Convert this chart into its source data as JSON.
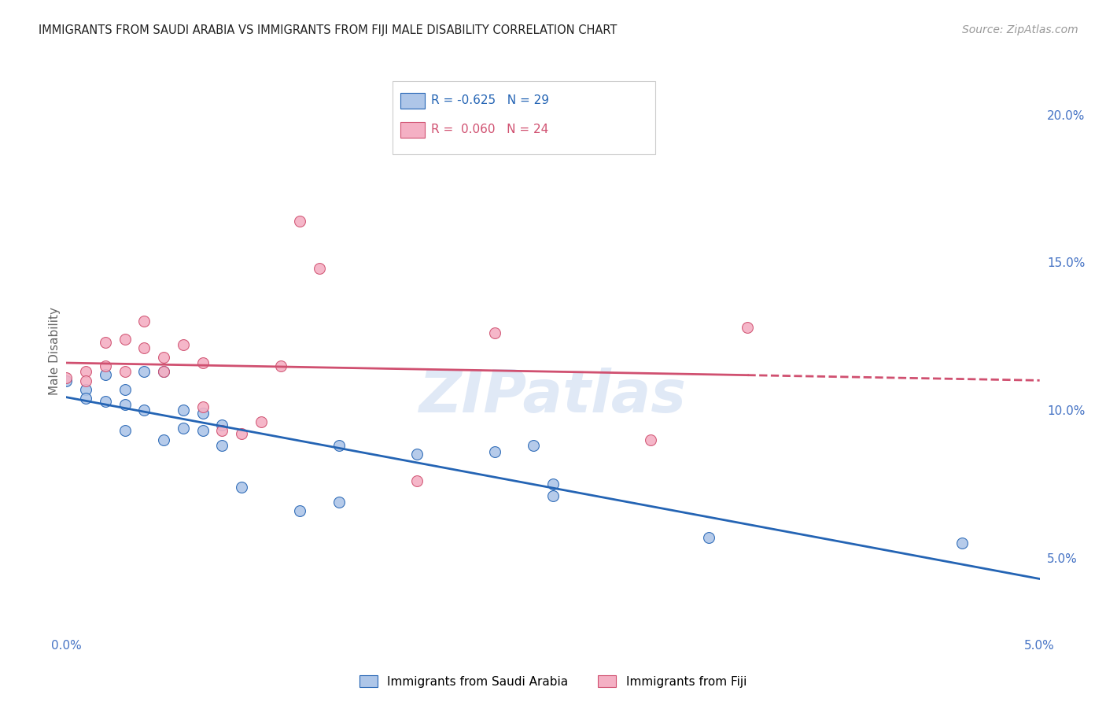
{
  "title": "IMMIGRANTS FROM SAUDI ARABIA VS IMMIGRANTS FROM FIJI MALE DISABILITY CORRELATION CHART",
  "source": "Source: ZipAtlas.com",
  "ylabel": "Male Disability",
  "ylabel_right_ticks": [
    "5.0%",
    "10.0%",
    "15.0%",
    "20.0%"
  ],
  "ylabel_right_vals": [
    0.05,
    0.1,
    0.15,
    0.2
  ],
  "xmin": 0.0,
  "xmax": 0.05,
  "ymin": 0.025,
  "ymax": 0.215,
  "watermark": "ZIPatlas",
  "saudi_R": -0.625,
  "saudi_N": 29,
  "fiji_R": 0.06,
  "fiji_N": 24,
  "saudi_color": "#aec6e8",
  "saudi_line_color": "#2464b4",
  "fiji_color": "#f4b0c4",
  "fiji_line_color": "#d05070",
  "saudi_x": [
    0.0,
    0.001,
    0.001,
    0.002,
    0.002,
    0.003,
    0.003,
    0.003,
    0.004,
    0.004,
    0.005,
    0.005,
    0.006,
    0.006,
    0.007,
    0.007,
    0.008,
    0.008,
    0.009,
    0.012,
    0.014,
    0.014,
    0.018,
    0.022,
    0.024,
    0.025,
    0.025,
    0.033,
    0.046
  ],
  "saudi_y": [
    0.11,
    0.107,
    0.104,
    0.112,
    0.103,
    0.102,
    0.107,
    0.093,
    0.113,
    0.1,
    0.113,
    0.09,
    0.1,
    0.094,
    0.093,
    0.099,
    0.095,
    0.088,
    0.074,
    0.066,
    0.088,
    0.069,
    0.085,
    0.086,
    0.088,
    0.075,
    0.071,
    0.057,
    0.055
  ],
  "fiji_x": [
    0.0,
    0.001,
    0.001,
    0.002,
    0.002,
    0.003,
    0.003,
    0.004,
    0.004,
    0.005,
    0.005,
    0.006,
    0.007,
    0.007,
    0.008,
    0.009,
    0.01,
    0.011,
    0.012,
    0.013,
    0.018,
    0.022,
    0.03,
    0.035
  ],
  "fiji_y": [
    0.111,
    0.113,
    0.11,
    0.115,
    0.123,
    0.124,
    0.113,
    0.13,
    0.121,
    0.113,
    0.118,
    0.122,
    0.116,
    0.101,
    0.093,
    0.092,
    0.096,
    0.115,
    0.164,
    0.148,
    0.076,
    0.126,
    0.09,
    0.128
  ],
  "bottom_legend": [
    {
      "label": "Immigrants from Saudi Arabia",
      "color": "#aec6e8",
      "line_color": "#2464b4"
    },
    {
      "label": "Immigrants from Fiji",
      "color": "#f4b0c4",
      "line_color": "#d05070"
    }
  ]
}
